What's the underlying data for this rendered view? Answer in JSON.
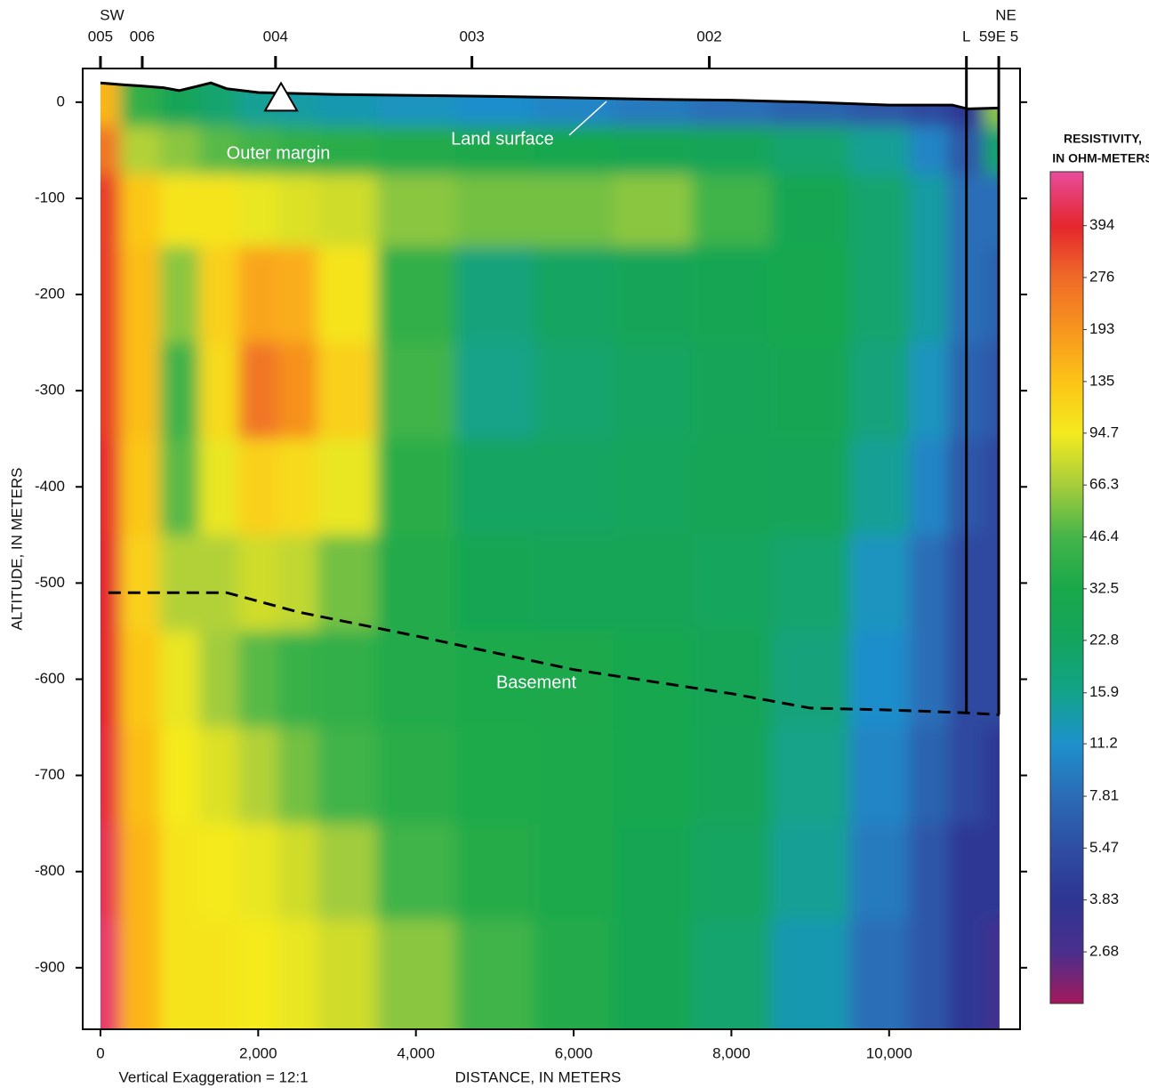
{
  "chart_data": {
    "type": "heatmap",
    "xlabel": "DISTANCE, IN METERS",
    "ylabel": "ALTITUDE, IN METERS",
    "note": "Vertical Exaggeration = 12:1",
    "xlim": [
      -225,
      11660
    ],
    "ylim": [
      -964,
      35
    ],
    "xticks": [
      0,
      {
        "value": 2000,
        "label": "2,000"
      },
      {
        "value": 4000,
        "label": "4,000"
      },
      {
        "value": 6000,
        "label": "6,000"
      },
      {
        "value": 8000,
        "label": "8,000"
      },
      {
        "value": 10000,
        "label": "10,000"
      }
    ],
    "yticks": [
      0,
      -100,
      -200,
      -300,
      -400,
      -500,
      -600,
      -700,
      -800,
      -900
    ],
    "x": [
      0,
      500,
      1000,
      1500,
      2000,
      2500,
      3000,
      4000,
      5000,
      6000,
      7000,
      8000,
      9000,
      10000,
      10500,
      11000,
      11400
    ],
    "y": [
      0,
      -50,
      -100,
      -200,
      -300,
      -400,
      -500,
      -600,
      -700,
      -800,
      -900
    ],
    "values": [
      [
        150,
        40,
        25,
        20,
        15,
        14,
        13,
        12,
        11,
        10,
        9,
        8,
        7,
        6,
        5,
        4,
        60
      ],
      [
        250,
        70,
        60,
        50,
        45,
        40,
        38,
        35,
        32,
        30,
        28,
        25,
        20,
        15,
        10,
        6,
        20
      ],
      [
        350,
        130,
        100,
        100,
        90,
        85,
        80,
        60,
        55,
        55,
        60,
        45,
        28,
        20,
        14,
        8,
        8
      ],
      [
        350,
        140,
        60,
        120,
        170,
        160,
        100,
        40,
        18,
        22,
        25,
        28,
        30,
        20,
        14,
        8,
        7
      ],
      [
        350,
        140,
        45,
        110,
        250,
        200,
        120,
        45,
        16,
        20,
        22,
        25,
        28,
        18,
        12,
        7,
        6
      ],
      [
        380,
        130,
        50,
        90,
        120,
        110,
        90,
        38,
        22,
        22,
        24,
        26,
        25,
        15,
        10,
        6,
        5
      ],
      [
        400,
        120,
        70,
        70,
        80,
        75,
        55,
        35,
        28,
        26,
        26,
        24,
        20,
        12,
        8,
        5,
        5
      ],
      [
        400,
        130,
        90,
        65,
        50,
        42,
        40,
        35,
        33,
        32,
        30,
        26,
        18,
        11,
        8,
        5,
        5
      ],
      [
        420,
        140,
        95,
        85,
        70,
        55,
        45,
        38,
        34,
        33,
        30,
        25,
        16,
        10,
        7,
        5,
        4
      ],
      [
        450,
        150,
        100,
        95,
        90,
        80,
        65,
        45,
        36,
        33,
        28,
        22,
        15,
        9,
        6,
        4,
        4
      ],
      [
        480,
        150,
        100,
        100,
        95,
        90,
        80,
        60,
        45,
        35,
        28,
        20,
        13,
        8,
        6,
        4,
        3
      ]
    ],
    "colorbar": {
      "title": [
        "RESISTIVITY,",
        "IN OHM-METERS"
      ],
      "log": true,
      "lim": [
        1.88,
        571
      ],
      "ticks": [
        2.68,
        3.83,
        5.47,
        7.81,
        11.2,
        15.9,
        22.8,
        32.5,
        46.4,
        66.3,
        94.7,
        135,
        193,
        276,
        394
      ],
      "colors": [
        "#4a2f8e",
        "#2e3592",
        "#2f4ea3",
        "#2b6cb5",
        "#1e90cc",
        "#12a38a",
        "#14a45e",
        "#1aa84b",
        "#44b449",
        "#a6cd3b",
        "#f4ea1f",
        "#fcc317",
        "#f7951e",
        "#ef6a28",
        "#e5262e"
      ],
      "low_color": "#a3195b",
      "high_color": "#e84d9c"
    },
    "stations": {
      "left_label": "SW",
      "right_label": "NE",
      "items": [
        {
          "label": "005",
          "x": 0
        },
        {
          "label": "006",
          "x": 530
        },
        {
          "label": "004",
          "x": 2220
        },
        {
          "label": "003",
          "x": 4710
        },
        {
          "label": "002",
          "x": 7720
        },
        {
          "label": "L",
          "x": 10980,
          "line": true
        },
        {
          "label": "59E 5",
          "x": 11390,
          "line": true
        }
      ]
    },
    "land_surface": {
      "name": "Land surface",
      "color": "#000000",
      "x": [
        0,
        300,
        500,
        800,
        1000,
        1200,
        1400,
        1600,
        2000,
        3000,
        5000,
        7000,
        8000,
        9000,
        10000,
        10800,
        11000,
        11400
      ],
      "y": [
        20,
        18,
        17,
        15,
        12,
        16,
        20,
        14,
        10,
        8,
        6,
        3,
        2,
        0,
        -3,
        -3,
        -7,
        -6
      ]
    },
    "basement": {
      "name": "Basement",
      "color": "#000000",
      "x": [
        100,
        1600,
        2500,
        4000,
        6000,
        8000,
        9000,
        10000,
        11000,
        11400
      ],
      "y": [
        -510,
        -510,
        -530,
        -555,
        -590,
        -615,
        -630,
        -632,
        -635,
        -637
      ]
    },
    "annotations": [
      {
        "text": "Outer margin"
      }
    ],
    "marker": {
      "x": 2290,
      "y": 5
    }
  }
}
